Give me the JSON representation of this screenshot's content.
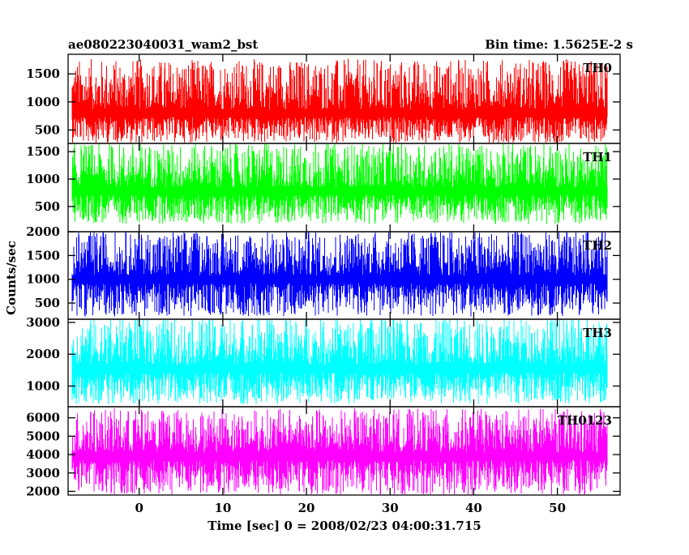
{
  "header": {
    "title": "ae080223040031_wam2_bst",
    "bin_time": "Bin time: 1.5625E-2 s"
  },
  "chart_data": {
    "type": "line",
    "ylabel": "Counts/sec",
    "xlabel": "Time [sec] 0 = 2008/02/23 04:00:31.715",
    "xlim": [
      -8.5,
      57.5
    ],
    "data_x_range": [
      -8,
      56
    ],
    "bin_time_s": 0.015625,
    "x_ticks": [
      0,
      10,
      20,
      30,
      40,
      50
    ],
    "x_tick_labels": [
      "0",
      "10",
      "20",
      "30",
      "40",
      "50"
    ],
    "grid": false,
    "panels": [
      {
        "name": "TH0",
        "color": "#ff0000",
        "ylim": [
          260,
          1850
        ],
        "y_ticks": [
          500,
          1000,
          1500
        ],
        "y_tick_labels": [
          "500",
          "1000",
          "1500"
        ],
        "level_mean": 800,
        "noise_low": 330,
        "noise_high": 1700
      },
      {
        "name": "TH1",
        "color": "#00ff00",
        "ylim": [
          40,
          1650
        ],
        "y_ticks": [
          500,
          1000,
          1500
        ],
        "y_tick_labels": [
          "500",
          "1000",
          "1500"
        ],
        "level_mean": 780,
        "noise_low": 250,
        "noise_high": 1600
      },
      {
        "name": "TH2",
        "color": "#0000ff",
        "ylim": [
          160,
          2000
        ],
        "y_ticks": [
          500,
          1000,
          1500,
          2000
        ],
        "y_tick_labels": [
          "500",
          "1000",
          "1500",
          "2000"
        ],
        "level_mean": 1000,
        "noise_low": 300,
        "noise_high": 1950
      },
      {
        "name": "TH3",
        "color": "#00ffff",
        "ylim": [
          350,
          3100
        ],
        "y_ticks": [
          1000,
          2000,
          3000
        ],
        "y_tick_labels": [
          "1000",
          "2000",
          "3000"
        ],
        "level_mean": 1550,
        "noise_low": 550,
        "noise_high": 3050
      },
      {
        "name": "TH0123",
        "color": "#ff00ff",
        "ylim": [
          1800,
          6600
        ],
        "y_ticks": [
          2000,
          3000,
          4000,
          5000,
          6000
        ],
        "y_tick_labels": [
          "2000",
          "3000",
          "4000",
          "5000",
          "6000"
        ],
        "level_mean": 3900,
        "noise_low": 2000,
        "noise_high": 6300
      }
    ]
  }
}
